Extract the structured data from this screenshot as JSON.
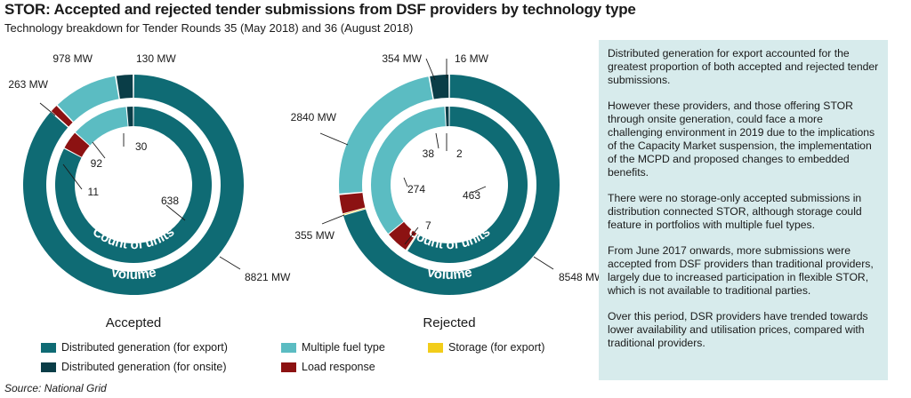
{
  "title": "STOR: Accepted and rejected tender submissions from DSF providers by technology type",
  "subtitle": "Technology breakdown for Tender Rounds 35 (May 2018) and 36 (August 2018)",
  "colors": {
    "dg_export": "#0f6b74",
    "dg_onsite": "#0a3d47",
    "multiple_fuel": "#5bbcc2",
    "load_response": "#8c1212",
    "storage": "#f2cd1a"
  },
  "chart_data": [
    {
      "type": "pie",
      "title": "Accepted",
      "outer_ring_label": "Volume",
      "inner_ring_label": "Count of units",
      "categories": [
        "Distributed generation (for export)",
        "Load response",
        "Multiple fuel type",
        "Distributed generation (for onsite)"
      ],
      "series": [
        {
          "name": "Volume",
          "unit": "MW",
          "values": [
            8821,
            130,
            978,
            263
          ],
          "labels": [
            "8821 MW",
            "130 MW",
            "978 MW",
            "263 MW"
          ]
        },
        {
          "name": "Count of units",
          "values": [
            638,
            30,
            92,
            11
          ],
          "labels": [
            "638",
            "30",
            "92",
            "11"
          ]
        }
      ]
    },
    {
      "type": "pie",
      "title": "Rejected",
      "outer_ring_label": "Volume",
      "inner_ring_label": "Count of units",
      "categories": [
        "Distributed generation (for export)",
        "Storage (for export)",
        "Load response",
        "Multiple fuel type",
        "Distributed generation (for onsite)"
      ],
      "series": [
        {
          "name": "Volume",
          "unit": "MW",
          "values": [
            8548,
            16,
            354,
            2840,
            355
          ],
          "labels": [
            "8548 MW",
            "16 MW",
            "354 MW",
            "2840 MW",
            "355 MW"
          ]
        },
        {
          "name": "Count of units",
          "values": [
            463,
            2,
            38,
            274,
            7
          ],
          "labels": [
            "463",
            "2",
            "38",
            "274",
            "7"
          ]
        }
      ]
    }
  ],
  "legend": [
    {
      "label": "Distributed generation (for export)",
      "color": "#0f6b74"
    },
    {
      "label": "Distributed generation (for onsite)",
      "color": "#0a3d47"
    },
    {
      "label": "Multiple fuel type",
      "color": "#5bbcc2"
    },
    {
      "label": "Load response",
      "color": "#8c1212"
    },
    {
      "label": "Storage (for export)",
      "color": "#f2cd1a"
    }
  ],
  "panel": {
    "paragraphs": [
      "Distributed generation for export accounted for the greatest proportion of both accepted and rejected tender submissions.",
      "However these providers, and those offering STOR through onsite generation, could face a more challenging environment in 2019 due to the implications of the Capacity Market suspension, the implementation of the MCPD and proposed changes to embedded benefits.",
      "There were no storage-only accepted submissions in distribution connected STOR, although storage could feature in portfolios with multiple fuel types.",
      "From June 2017 onwards, more submissions were accepted from DSF providers than traditional providers, largely due to increased participation in flexible STOR, which is not available to traditional parties.",
      "Over this period, DSR providers have trended towards lower availability and utilisation prices, compared with traditional providers."
    ]
  },
  "source": "Source: National Grid"
}
